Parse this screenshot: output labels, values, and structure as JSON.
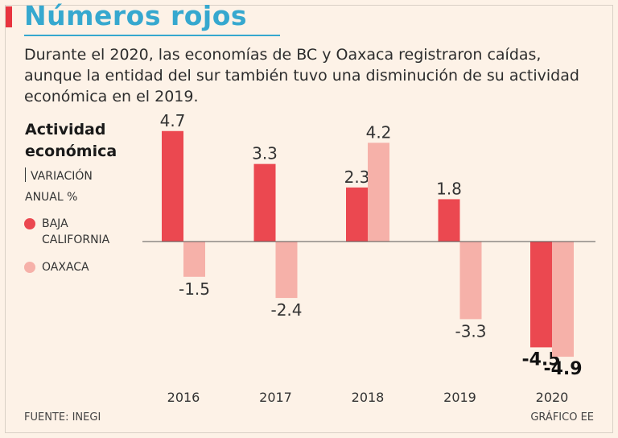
{
  "header": {
    "title": "Números rojos",
    "subtitle_lines": [
      "Durante el 2020, las economías de BC y Oaxaca registraron caídas,",
      "aunque la entidad del sur también tuvo una disminución de su actividad",
      "económica en el 2019."
    ]
  },
  "side": {
    "title_lines": [
      "Actividad",
      "económica"
    ],
    "unit_lines": [
      "VARIACIÓN",
      "ANUAL %"
    ]
  },
  "legend": {
    "bc_lines": [
      "BAJA",
      "CALIFORNIA"
    ],
    "oax_label": "OAXACA"
  },
  "footer": {
    "source": "FUENTE: INEGI",
    "credit": "GRÁFICO EE"
  },
  "colors": {
    "bc": "#eb4850",
    "oaxaca": "#f6b1a9",
    "title": "#36a8cf",
    "accent": "#e8343f"
  },
  "chart_data": {
    "type": "bar",
    "title": "Actividad económica",
    "ylabel": "VARIACIÓN ANUAL %",
    "categories": [
      "2016",
      "2017",
      "2018",
      "2019",
      "2020"
    ],
    "series": [
      {
        "name": "BAJA CALIFORNIA",
        "values": [
          4.7,
          3.3,
          2.3,
          1.8,
          -4.5
        ],
        "labels": [
          "4.7",
          "3.3",
          "2.3",
          "1.8",
          "-4.5"
        ]
      },
      {
        "name": "OAXACA",
        "values": [
          -1.5,
          -2.4,
          4.2,
          -3.3,
          -4.9
        ],
        "labels": [
          "-1.5",
          "-2.4",
          "4.2",
          "-3.3",
          "-4.9"
        ]
      }
    ],
    "ylim": [
      -5,
      5
    ],
    "grid": false
  }
}
